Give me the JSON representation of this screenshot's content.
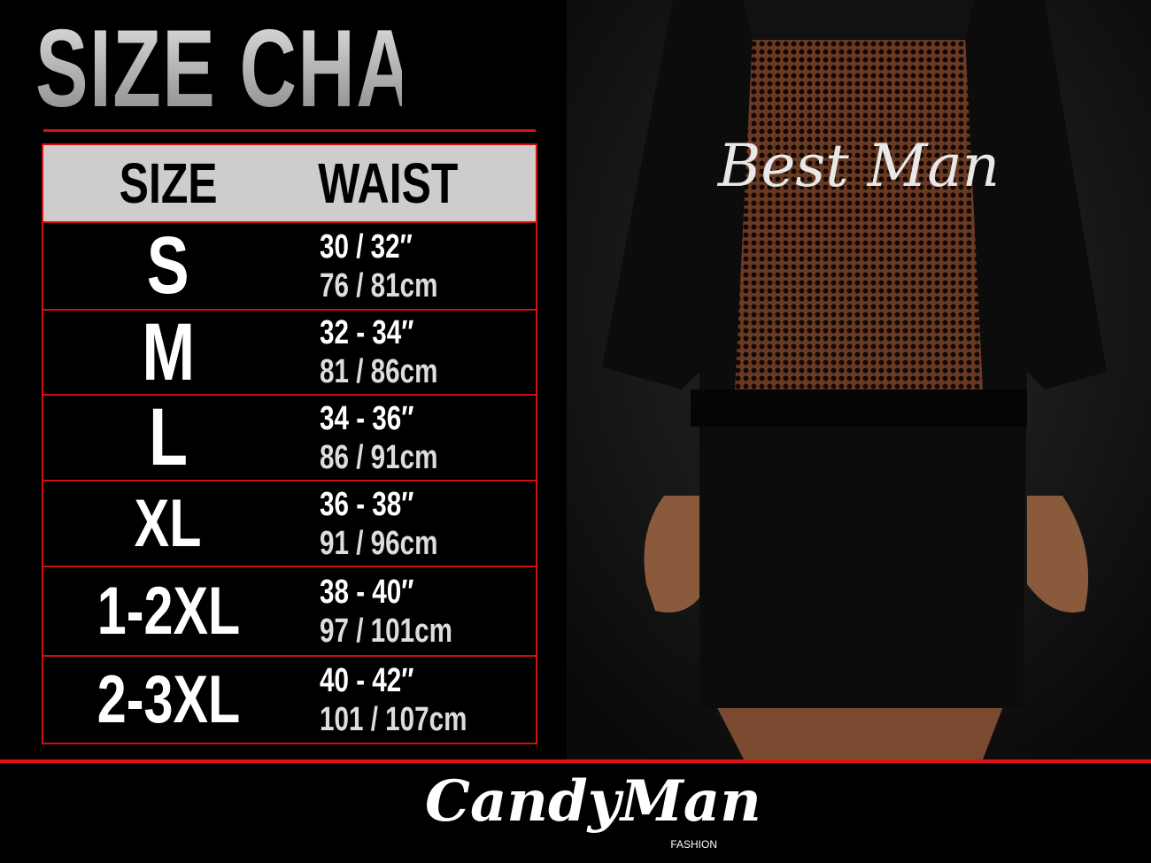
{
  "title": "SIZE CHART",
  "table": {
    "headers": [
      "SIZE",
      "WAIST"
    ],
    "rows": [
      {
        "size": "S",
        "inches": "30 / 32″",
        "cm": "76 / 81cm"
      },
      {
        "size": "M",
        "inches": "32 - 34″",
        "cm": "81 / 86cm"
      },
      {
        "size": "L",
        "inches": "34 - 36″",
        "cm": "86 / 91cm"
      },
      {
        "size": "XL",
        "inches": "36 - 38″",
        "cm": "91 / 96cm"
      },
      {
        "size": "1-2XL",
        "inches": "38 - 40″",
        "cm": "97 / 101cm"
      },
      {
        "size": "2-3XL",
        "inches": "40 - 42″",
        "cm": "101 / 107cm"
      }
    ]
  },
  "product": {
    "print_text": "Best Man"
  },
  "brand": {
    "name": "CandyMan",
    "sub": "FASHION"
  },
  "colors": {
    "accent": "#e01010",
    "header_bg": "#cfcccc",
    "background": "#000000"
  }
}
